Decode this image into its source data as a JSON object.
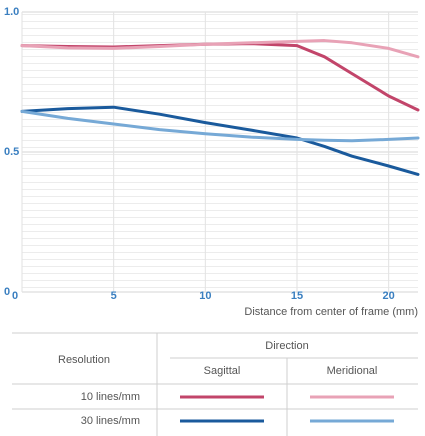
{
  "chart_data": {
    "type": "line",
    "x_label": "Distance from center of frame (mm)",
    "x": [
      0,
      2.5,
      5,
      7.5,
      10,
      12.5,
      15,
      16.5,
      18,
      20,
      21.6
    ],
    "series": [
      {
        "color": "#c2456a",
        "values": [
          0.88,
          0.877,
          0.875,
          0.88,
          0.885,
          0.887,
          0.88,
          0.84,
          0.78,
          0.7,
          0.65
        ]
      },
      {
        "color": "#e8a2b6",
        "values": [
          0.88,
          0.872,
          0.87,
          0.877,
          0.885,
          0.89,
          0.895,
          0.898,
          0.89,
          0.87,
          0.84
        ]
      },
      {
        "color": "#1a5a9c",
        "values": [
          0.645,
          0.655,
          0.66,
          0.635,
          0.605,
          0.578,
          0.55,
          0.52,
          0.485,
          0.45,
          0.42
        ]
      },
      {
        "color": "#76a9d6",
        "values": [
          0.645,
          0.62,
          0.6,
          0.58,
          0.565,
          0.553,
          0.545,
          0.542,
          0.54,
          0.545,
          0.55
        ]
      }
    ],
    "xlim": [
      0,
      21.6
    ],
    "xticks": [
      0,
      5,
      10,
      15,
      20
    ],
    "ylim": [
      0,
      1
    ],
    "yticks": [
      0,
      0.5,
      {
        "value": 1,
        "label": "1.0"
      }
    ],
    "grid": true,
    "legend_table": {
      "row_header": "Resolution",
      "column_header": "Direction",
      "columns": [
        "Sagittal",
        "Meridional"
      ],
      "rows": [
        "10 lines/mm",
        "30 lines/mm"
      ]
    }
  }
}
